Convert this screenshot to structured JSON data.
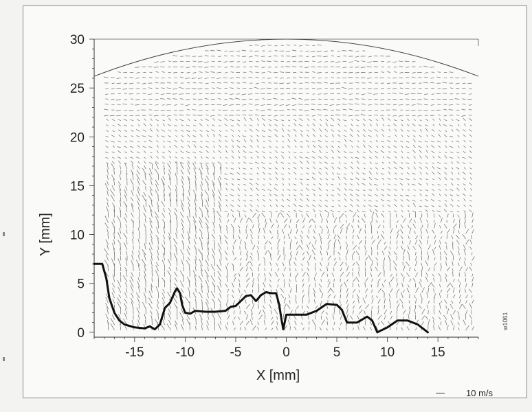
{
  "chart_data": {
    "type": "quiver",
    "title": "",
    "xlabel": "X [mm]",
    "ylabel": "Y [mm]",
    "xlim": [
      -19,
      19
    ],
    "ylim": [
      -0.5,
      30
    ],
    "xticks": [
      -15,
      -10,
      -5,
      0,
      5,
      10,
      15
    ],
    "yticks": [
      0,
      5,
      10,
      15,
      20,
      25,
      30
    ],
    "xtick_labels": [
      "-15",
      "-10",
      "-5",
      "0",
      "5",
      "10",
      "15"
    ],
    "ytick_labels": [
      "0",
      "5",
      "10",
      "15",
      "20",
      "25",
      "30"
    ],
    "grid": false,
    "arrow_scale_label": "10 m/s",
    "side_label": "w1061",
    "boundary_curve": {
      "x": [
        -19,
        -18.2,
        -17.8,
        -17.5,
        -17,
        -16.5,
        -16,
        -15,
        -14,
        -13.5,
        -13,
        -12.5,
        -12,
        -11.5,
        -11,
        -10.8,
        -10.5,
        -10.3,
        -10,
        -9.5,
        -9,
        -8,
        -7,
        -6,
        -5.5,
        -5,
        -4.5,
        -4,
        -3.5,
        -3,
        -2.5,
        -2,
        -1.5,
        -1,
        -0.7,
        -0.5,
        -0.3,
        0,
        1,
        2,
        3,
        4,
        5,
        5.5,
        6,
        7,
        8,
        8.5,
        9,
        10,
        11,
        12,
        13,
        14
      ],
      "y": [
        7.0,
        7.0,
        5.5,
        3.5,
        2.0,
        1.2,
        0.8,
        0.5,
        0.4,
        0.6,
        0.3,
        0.8,
        2.5,
        3.0,
        4.2,
        4.5,
        4.0,
        2.8,
        2.0,
        1.9,
        2.2,
        2.1,
        2.1,
        2.2,
        2.6,
        2.7,
        3.2,
        3.7,
        3.8,
        3.2,
        3.8,
        4.1,
        4.0,
        4.0,
        2.8,
        1.5,
        0.3,
        1.8,
        1.8,
        1.8,
        2.2,
        2.9,
        2.8,
        2.3,
        1.0,
        1.0,
        1.6,
        1.2,
        0.0,
        0.5,
        1.2,
        1.2,
        0.8,
        0.0
      ]
    },
    "arc": {
      "x_range": [
        -19,
        19
      ],
      "y_edge": 26.2,
      "y_top": 30
    }
  }
}
